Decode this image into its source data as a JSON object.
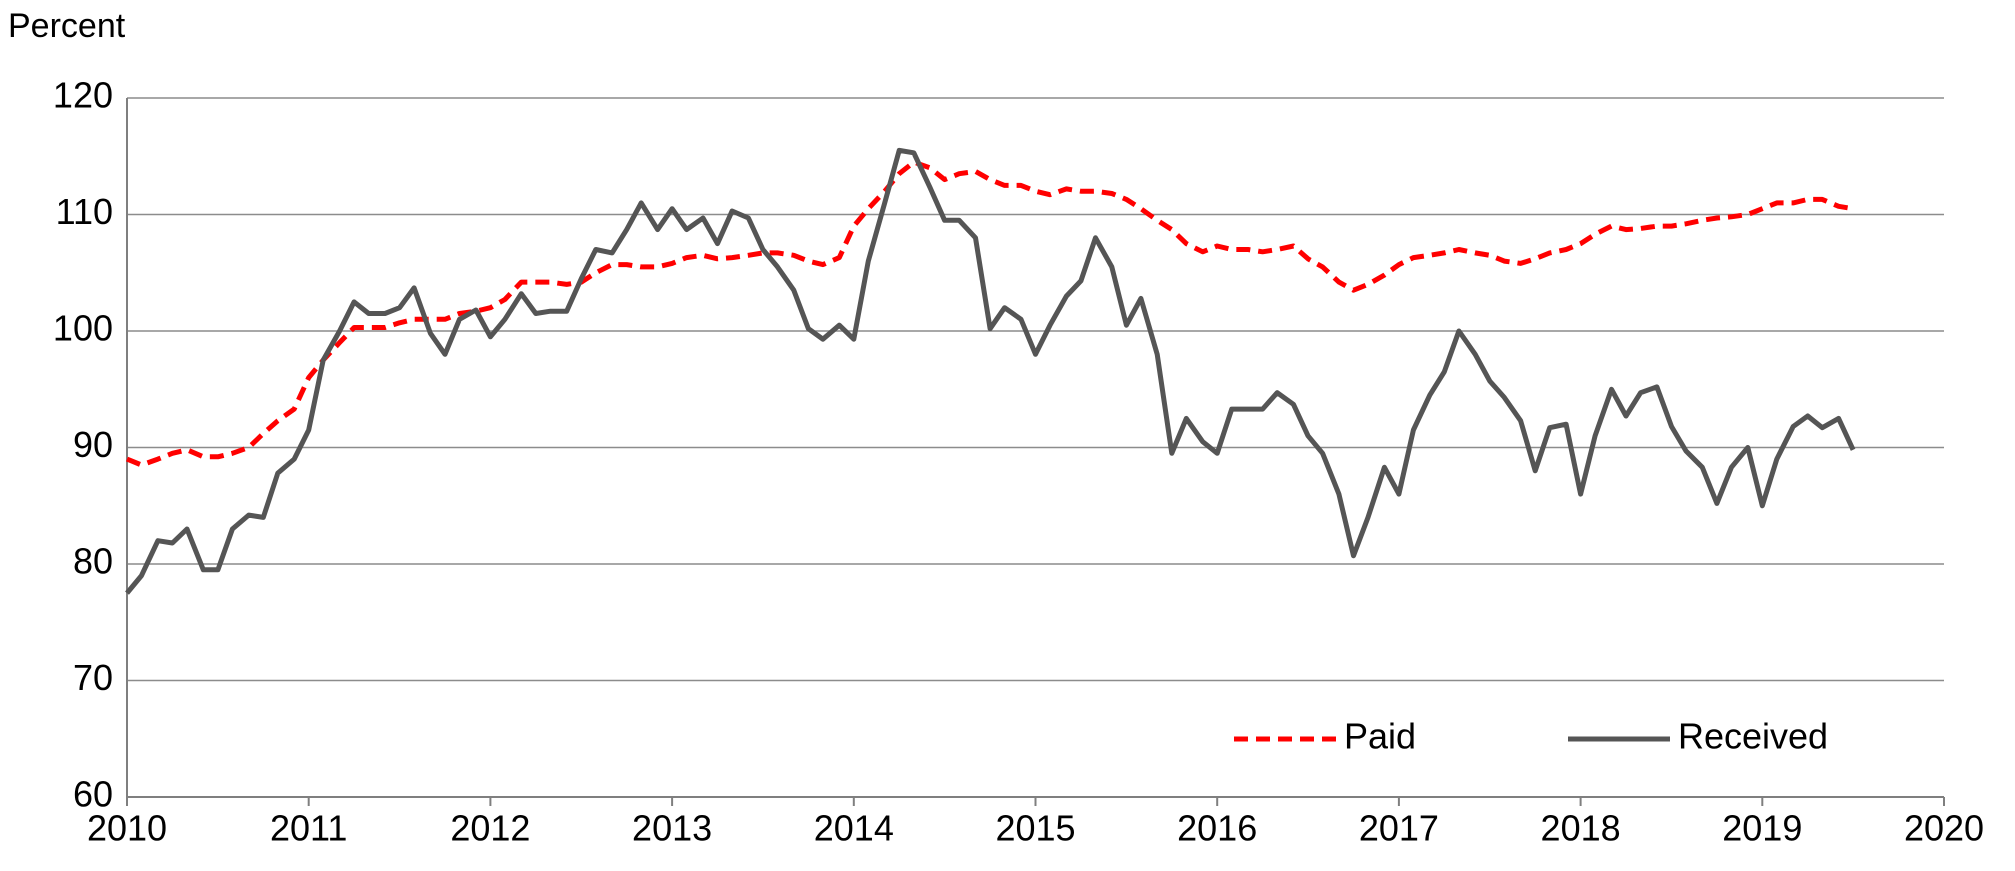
{
  "chart_data": {
    "type": "line",
    "y_label": "Percent",
    "x": [
      2010,
      2010.08,
      2010.17,
      2010.25,
      2010.33,
      2010.42,
      2010.5,
      2010.58,
      2010.67,
      2010.75,
      2010.83,
      2010.92,
      2011,
      2011.08,
      2011.17,
      2011.25,
      2011.33,
      2011.42,
      2011.5,
      2011.58,
      2011.67,
      2011.75,
      2011.83,
      2011.92,
      2012,
      2012.08,
      2012.17,
      2012.25,
      2012.33,
      2012.42,
      2012.5,
      2012.58,
      2012.67,
      2012.75,
      2012.83,
      2012.92,
      2013,
      2013.08,
      2013.17,
      2013.25,
      2013.33,
      2013.42,
      2013.5,
      2013.58,
      2013.67,
      2013.75,
      2013.83,
      2013.92,
      2014,
      2014.08,
      2014.17,
      2014.25,
      2014.33,
      2014.42,
      2014.5,
      2014.58,
      2014.67,
      2014.75,
      2014.83,
      2014.92,
      2015,
      2015.08,
      2015.17,
      2015.25,
      2015.33,
      2015.42,
      2015.5,
      2015.58,
      2015.67,
      2015.75,
      2015.83,
      2015.92,
      2016,
      2016.08,
      2016.17,
      2016.25,
      2016.33,
      2016.42,
      2016.5,
      2016.58,
      2016.67,
      2016.75,
      2016.83,
      2016.92,
      2017,
      2017.08,
      2017.17,
      2017.25,
      2017.33,
      2017.42,
      2017.5,
      2017.58,
      2017.67,
      2017.75,
      2017.83,
      2017.92,
      2018,
      2018.08,
      2018.17,
      2018.25,
      2018.33,
      2018.42,
      2018.5,
      2018.58,
      2018.67,
      2018.75,
      2018.83,
      2018.92,
      2019,
      2019.08,
      2019.17,
      2019.25,
      2019.33,
      2019.42,
      2019.5
    ],
    "series": [
      {
        "name": "Paid",
        "color": "#ff0000",
        "dashed": true,
        "values": [
          89,
          88.5,
          89,
          89.5,
          89.8,
          89.2,
          89.2,
          89.5,
          90,
          91.2,
          92.3,
          93.3,
          96,
          97.5,
          99,
          100.3,
          100.3,
          100.3,
          100.7,
          101,
          101,
          101,
          101.5,
          101.7,
          102,
          102.7,
          104.2,
          104.2,
          104.2,
          104,
          104.2,
          105,
          105.7,
          105.7,
          105.5,
          105.5,
          105.8,
          106.3,
          106.5,
          106.2,
          106.3,
          106.5,
          106.7,
          106.7,
          106.5,
          106,
          105.7,
          106.3,
          109,
          110.5,
          112,
          113.5,
          114.5,
          114,
          113,
          113.5,
          113.7,
          113,
          112.5,
          112.5,
          112,
          111.7,
          112.2,
          112,
          112,
          111.8,
          111.3,
          110.5,
          109.5,
          108.7,
          107.5,
          106.8,
          107.3,
          107,
          107,
          106.8,
          107,
          107.3,
          106.2,
          105.5,
          104.2,
          103.5,
          104,
          104.8,
          105.7,
          106.3,
          106.5,
          106.7,
          107,
          106.7,
          106.5,
          106,
          105.8,
          106.2,
          106.7,
          107,
          107.5,
          108.3,
          109,
          108.7,
          108.8,
          109,
          109,
          109.2,
          109.5,
          109.7,
          109.8,
          110,
          110.5,
          111,
          111,
          111.3,
          111.3,
          110.7,
          110.5
        ]
      },
      {
        "name": "Received",
        "color": "#555555",
        "dashed": false,
        "values": [
          77.5,
          79,
          82,
          81.8,
          83,
          79.5,
          79.5,
          83,
          84.2,
          84,
          87.8,
          89,
          91.5,
          97.5,
          100,
          102.5,
          101.5,
          101.5,
          102,
          103.7,
          99.8,
          98,
          101,
          101.8,
          99.5,
          101,
          103.2,
          101.5,
          101.7,
          101.7,
          104.5,
          107,
          106.7,
          108.7,
          111,
          108.7,
          110.5,
          108.7,
          109.7,
          107.5,
          110.3,
          109.7,
          107,
          105.5,
          103.5,
          100.2,
          99.3,
          100.5,
          99.3,
          106,
          111,
          115.5,
          115.3,
          112.3,
          109.5,
          109.5,
          108,
          100.2,
          102,
          101,
          98,
          100.5,
          103,
          104.3,
          108,
          105.5,
          100.5,
          102.8,
          98,
          89.5,
          92.5,
          90.5,
          89.5,
          93.3,
          93.3,
          93.3,
          94.7,
          93.7,
          91,
          89.5,
          86,
          80.7,
          84,
          88.3,
          86,
          91.5,
          94.5,
          96.5,
          100,
          98,
          95.7,
          94.3,
          92.3,
          88,
          91.7,
          92,
          86,
          91,
          95,
          92.7,
          94.7,
          95.2,
          91.8,
          89.7,
          88.3,
          85.2,
          88.3,
          90,
          85,
          89,
          91.8,
          92.7,
          91.7,
          92.5,
          89.8
        ]
      }
    ],
    "xlim": [
      2010,
      2020
    ],
    "xticks": [
      2010,
      2011,
      2012,
      2013,
      2014,
      2015,
      2016,
      2017,
      2018,
      2019,
      2020
    ],
    "ylim": [
      60,
      120
    ],
    "yticks": [
      60,
      70,
      80,
      90,
      100,
      110,
      120
    ],
    "grid": true,
    "legend": "lower right"
  }
}
